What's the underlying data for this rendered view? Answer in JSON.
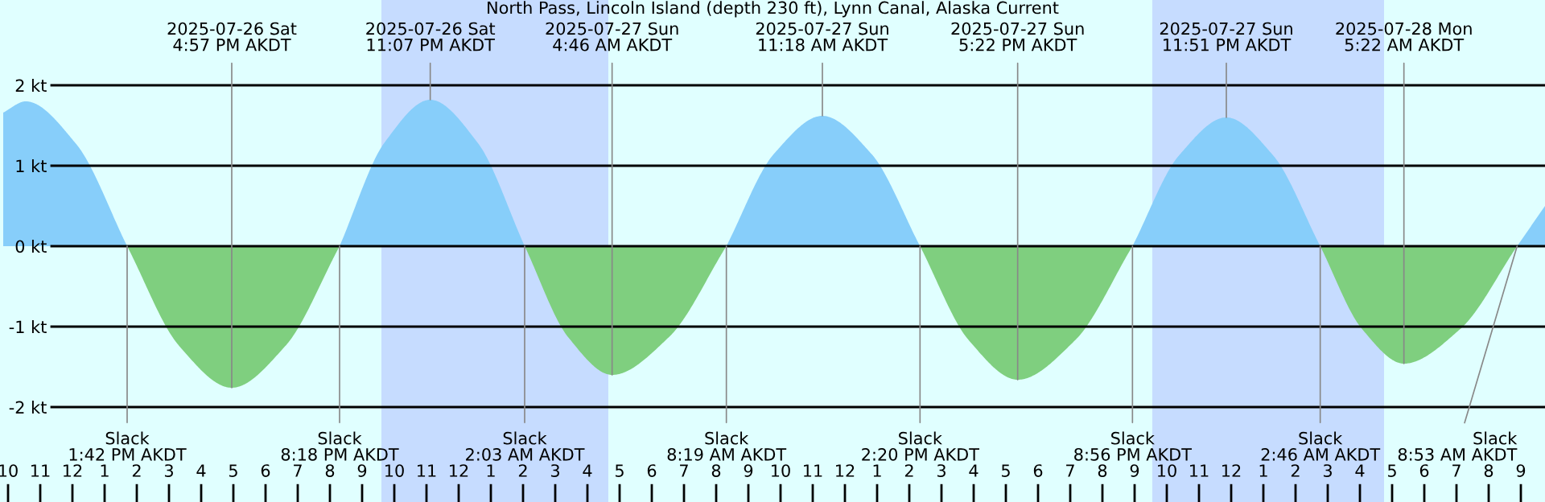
{
  "chart_data": {
    "type": "area",
    "title": "North Pass, Lincoln Island (depth 230 ft), Lynn Canal, Alaska Current",
    "x": [
      "2025-07-26T09:51",
      "2025-07-26T10:33",
      "2025-07-26T12:07",
      "2025-07-26T13:42",
      "2025-07-26T15:19",
      "2025-07-26T16:57",
      "2025-07-26T18:37",
      "2025-07-26T20:18",
      "2025-07-26T21:42",
      "2025-07-26T23:07",
      "2025-07-27T00:35",
      "2025-07-27T02:03",
      "2025-07-27T03:24",
      "2025-07-27T04:46",
      "2025-07-27T06:32",
      "2025-07-27T08:19",
      "2025-07-27T09:48",
      "2025-07-27T11:18",
      "2025-07-27T12:49",
      "2025-07-27T14:20",
      "2025-07-27T15:51",
      "2025-07-27T17:22",
      "2025-07-27T19:09",
      "2025-07-27T20:56",
      "2025-07-27T22:23",
      "2025-07-27T23:51",
      "2025-07-28T01:18",
      "2025-07-28T02:46",
      "2025-07-28T04:04",
      "2025-07-28T05:22",
      "2025-07-28T07:07",
      "2025-07-28T08:53",
      "2025-07-28T09:45"
    ],
    "series": [
      {
        "color": "#87cefa",
        "values": [
          1.66,
          1.8,
          1.27,
          0,
          null,
          null,
          null,
          0,
          1.29,
          1.82,
          1.29,
          0,
          null,
          null,
          null,
          0,
          1.15,
          1.62,
          1.15,
          0,
          null,
          null,
          null,
          0,
          1.13,
          1.6,
          1.13,
          0,
          null,
          null,
          null,
          0,
          0.5
        ]
      },
      {
        "color": "#7fcf7f",
        "values": [
          null,
          null,
          null,
          0,
          -1.24,
          -1.76,
          -1.24,
          0,
          null,
          null,
          null,
          0,
          -1.13,
          -1.6,
          -1.13,
          0,
          null,
          null,
          null,
          0,
          -1.17,
          -1.66,
          -1.17,
          0,
          null,
          null,
          null,
          0,
          -1.03,
          -1.46,
          -1.03,
          0,
          null
        ]
      }
    ],
    "bands": [
      {
        "axis": "x",
        "from": "2025-07-26T21:36",
        "to": "2025-07-27T04:39",
        "color": "#c6dcff"
      },
      {
        "axis": "x",
        "from": "2025-07-27T21:33",
        "to": "2025-07-28T04:45",
        "color": "#c6dcff"
      }
    ],
    "annotations": [
      {
        "text": "2025-07-26 Sat\n4:57 PM AKDT",
        "x": "2025-07-26T16:57",
        "y": -1.76
      },
      {
        "text": "2025-07-26 Sat\n11:07 PM AKDT",
        "x": "2025-07-26T23:07",
        "y": 1.82
      },
      {
        "text": "2025-07-27 Sun\n4:46 AM AKDT",
        "x": "2025-07-27T04:46",
        "y": -1.6
      },
      {
        "text": "2025-07-27 Sun\n11:18 AM AKDT",
        "x": "2025-07-27T11:18",
        "y": 1.62
      },
      {
        "text": "2025-07-27 Sun\n5:22 PM AKDT",
        "x": "2025-07-27T17:22",
        "y": -1.66
      },
      {
        "text": "2025-07-27 Sun\n11:51 PM AKDT",
        "x": "2025-07-27T23:51",
        "y": 1.6
      },
      {
        "text": "2025-07-28 Mon\n5:22 AM AKDT",
        "x": "2025-07-28T05:22",
        "y": -1.46
      },
      {
        "text": "Slack\n1:42 PM AKDT",
        "x": "2025-07-26T13:42",
        "y": 0
      },
      {
        "text": "Slack\n8:18 PM AKDT",
        "x": "2025-07-26T20:18",
        "y": 0
      },
      {
        "text": "Slack\n2:03 AM AKDT",
        "x": "2025-07-27T02:03",
        "y": 0
      },
      {
        "text": "Slack\n8:19 AM AKDT",
        "x": "2025-07-27T08:19",
        "y": 0
      },
      {
        "text": "Slack\n2:20 PM AKDT",
        "x": "2025-07-27T14:20",
        "y": 0
      },
      {
        "text": "Slack\n8:56 PM AKDT",
        "x": "2025-07-27T20:56",
        "y": 0
      },
      {
        "text": "Slack\n2:46 AM AKDT",
        "x": "2025-07-28T02:46",
        "y": 0
      },
      {
        "text": "Slack\n8:53 AM AKDT",
        "x": "2025-07-28T08:53",
        "y": 0
      }
    ],
    "xlim": [
      "2025-07-26T09:45",
      "2025-07-28T09:45"
    ],
    "xticks": [
      {
        "value": "2025-07-26T10:00",
        "label": "10"
      },
      {
        "value": "2025-07-26T11:00",
        "label": "11"
      },
      {
        "value": "2025-07-26T12:00",
        "label": "12"
      },
      {
        "value": "2025-07-26T13:00",
        "label": "1"
      },
      {
        "value": "2025-07-26T14:00",
        "label": "2"
      },
      {
        "value": "2025-07-26T15:00",
        "label": "3"
      },
      {
        "value": "2025-07-26T16:00",
        "label": "4"
      },
      {
        "value": "2025-07-26T17:00",
        "label": "5"
      },
      {
        "value": "2025-07-26T18:00",
        "label": "6"
      },
      {
        "value": "2025-07-26T19:00",
        "label": "7"
      },
      {
        "value": "2025-07-26T20:00",
        "label": "8"
      },
      {
        "value": "2025-07-26T21:00",
        "label": "9"
      },
      {
        "value": "2025-07-26T22:00",
        "label": "10"
      },
      {
        "value": "2025-07-26T23:00",
        "label": "11"
      },
      {
        "value": "2025-07-27T00:00",
        "label": "12"
      },
      {
        "value": "2025-07-27T01:00",
        "label": "1"
      },
      {
        "value": "2025-07-27T02:00",
        "label": "2"
      },
      {
        "value": "2025-07-27T03:00",
        "label": "3"
      },
      {
        "value": "2025-07-27T04:00",
        "label": "4"
      },
      {
        "value": "2025-07-27T05:00",
        "label": "5"
      },
      {
        "value": "2025-07-27T06:00",
        "label": "6"
      },
      {
        "value": "2025-07-27T07:00",
        "label": "7"
      },
      {
        "value": "2025-07-27T08:00",
        "label": "8"
      },
      {
        "value": "2025-07-27T09:00",
        "label": "9"
      },
      {
        "value": "2025-07-27T10:00",
        "label": "10"
      },
      {
        "value": "2025-07-27T11:00",
        "label": "11"
      },
      {
        "value": "2025-07-27T12:00",
        "label": "12"
      },
      {
        "value": "2025-07-27T13:00",
        "label": "1"
      },
      {
        "value": "2025-07-27T14:00",
        "label": "2"
      },
      {
        "value": "2025-07-27T15:00",
        "label": "3"
      },
      {
        "value": "2025-07-27T16:00",
        "label": "4"
      },
      {
        "value": "2025-07-27T17:00",
        "label": "5"
      },
      {
        "value": "2025-07-27T18:00",
        "label": "6"
      },
      {
        "value": "2025-07-27T19:00",
        "label": "7"
      },
      {
        "value": "2025-07-27T20:00",
        "label": "8"
      },
      {
        "value": "2025-07-27T21:00",
        "label": "9"
      },
      {
        "value": "2025-07-27T22:00",
        "label": "10"
      },
      {
        "value": "2025-07-27T23:00",
        "label": "11"
      },
      {
        "value": "2025-07-28T00:00",
        "label": "12"
      },
      {
        "value": "2025-07-28T01:00",
        "label": "1"
      },
      {
        "value": "2025-07-28T02:00",
        "label": "2"
      },
      {
        "value": "2025-07-28T03:00",
        "label": "3"
      },
      {
        "value": "2025-07-28T04:00",
        "label": "4"
      },
      {
        "value": "2025-07-28T05:00",
        "label": "5"
      },
      {
        "value": "2025-07-28T06:00",
        "label": "6"
      },
      {
        "value": "2025-07-28T07:00",
        "label": "7"
      },
      {
        "value": "2025-07-28T08:00",
        "label": "8"
      },
      {
        "value": "2025-07-28T09:00",
        "label": "9"
      }
    ],
    "ylim": [
      -3.18,
      3.06
    ],
    "yticks": [
      {
        "value": -2,
        "label": "-2 kt"
      },
      {
        "value": -1,
        "label": "-1 kt"
      },
      {
        "value": 0,
        "label": "0 kt"
      },
      {
        "value": 1,
        "label": "1 kt"
      },
      {
        "value": 2,
        "label": "2 kt"
      }
    ],
    "grid": "y",
    "legend": false
  }
}
